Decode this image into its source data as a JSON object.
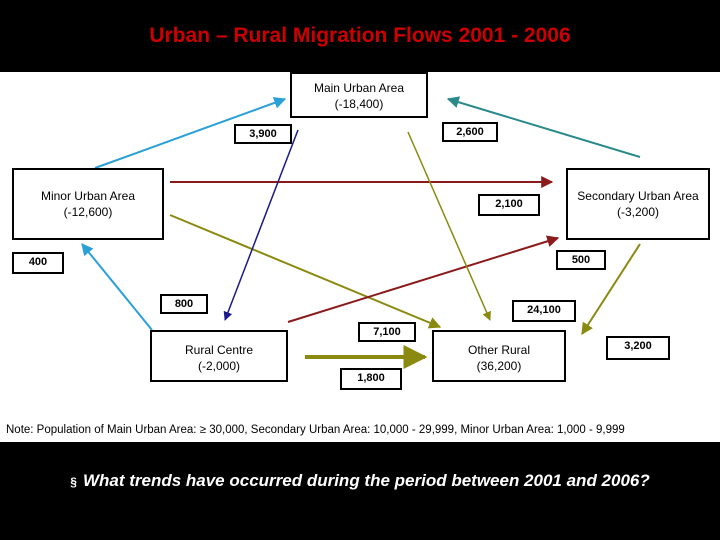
{
  "title": "Urban – Rural Migration Flows 2001 - 2006",
  "nodes": {
    "main_urban": {
      "name": "Main Urban Area",
      "change": "(-18,400)"
    },
    "minor_urban": {
      "name": "Minor Urban Area",
      "change": "(-12,600)"
    },
    "secondary_urban": {
      "name": "Secondary Urban Area",
      "change": "(-3,200)"
    },
    "rural_centre": {
      "name": "Rural Centre",
      "change": "(-2,000)"
    },
    "other_rural": {
      "name": "Other Rural",
      "change": "(36,200)"
    }
  },
  "flows": {
    "f3900": "3,900",
    "f2600": "2,600",
    "f2100": "2,100",
    "f400": "400",
    "f500": "500",
    "f800": "800",
    "f24100": "24,100",
    "f7100": "7,100",
    "f3200": "3,200",
    "f1800": "1,800"
  },
  "colors": {
    "cyan_blue": "#2aa0d8",
    "teal": "#2a8a8a",
    "dark_red": "#8b1a1a",
    "olive": "#8a8a10",
    "navy": "#1a1a8a",
    "title_red": "#cc0000"
  },
  "note": "Note: Population of Main Urban Area: ≥ 30,000, Secondary Urban Area: 10,000 - 29,999, Minor Urban Area: 1,000 - 9,999",
  "question": "What trends have occurred during the period between 2001 and 2006?"
}
